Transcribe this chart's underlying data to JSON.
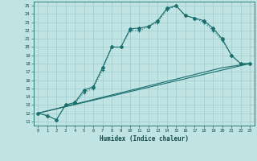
{
  "xlabel": "Humidex (Indice chaleur)",
  "xlim": [
    -0.5,
    23.5
  ],
  "ylim": [
    10.5,
    25.5
  ],
  "yticks": [
    11,
    12,
    13,
    14,
    15,
    16,
    17,
    18,
    19,
    20,
    21,
    22,
    23,
    24,
    25
  ],
  "xticks": [
    0,
    1,
    2,
    3,
    4,
    5,
    6,
    7,
    8,
    9,
    10,
    11,
    12,
    13,
    14,
    15,
    16,
    17,
    18,
    19,
    20,
    21,
    22,
    23
  ],
  "bg_color": "#c0e4e4",
  "grid_color": "#a0cccc",
  "line_color": "#1a6e6e",
  "line1_x": [
    0,
    1,
    2,
    3,
    4,
    5,
    6,
    7,
    8,
    9,
    10,
    11,
    12,
    13,
    14,
    15,
    16,
    17,
    18,
    19,
    20,
    21,
    22,
    23
  ],
  "line1_y": [
    12.0,
    11.7,
    11.2,
    13.0,
    13.3,
    14.8,
    15.2,
    17.5,
    20.0,
    20.0,
    22.2,
    22.3,
    22.5,
    23.2,
    24.7,
    25.0,
    23.8,
    23.5,
    23.2,
    22.3,
    21.0,
    19.0,
    18.0,
    18.0
  ],
  "line2_x": [
    0,
    1,
    2,
    3,
    4,
    5,
    6,
    7,
    8,
    9,
    10,
    11,
    12,
    13,
    14,
    15,
    16,
    17,
    18,
    19,
    20,
    21,
    22,
    23
  ],
  "line2_y": [
    12.0,
    11.7,
    11.2,
    13.0,
    13.2,
    14.5,
    15.0,
    17.2,
    20.0,
    20.0,
    22.0,
    22.0,
    22.5,
    23.0,
    24.5,
    25.0,
    23.8,
    23.5,
    23.0,
    22.0,
    20.8,
    19.0,
    18.0,
    18.0
  ],
  "line3_x": [
    0,
    23
  ],
  "line3_y": [
    12.0,
    18.0
  ],
  "line4_x": [
    0,
    20,
    23
  ],
  "line4_y": [
    12.0,
    17.5,
    18.0
  ]
}
